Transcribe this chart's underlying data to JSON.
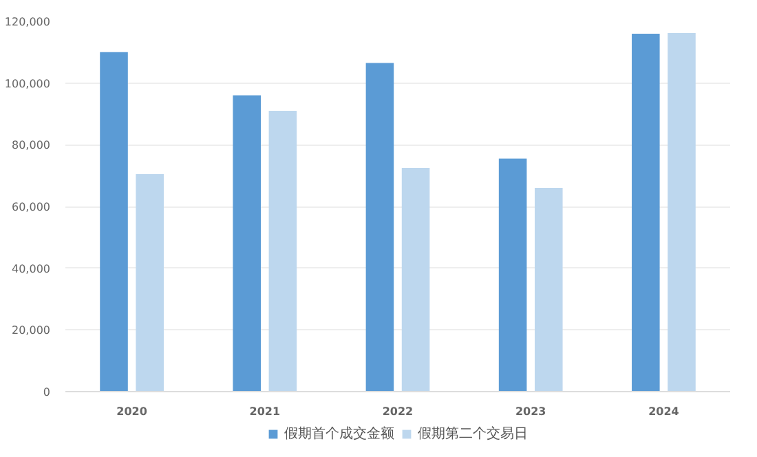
{
  "chart_data": {
    "type": "bar",
    "categories": [
      "2020",
      "2021",
      "2022",
      "2023",
      "2024"
    ],
    "series": [
      {
        "name": "假期首个成交金额",
        "color": "#5b9bd5",
        "values": [
          110000,
          96000,
          106500,
          75500,
          116000
        ]
      },
      {
        "name": "假期第二个交易日",
        "color": "#bdd7ee",
        "values": [
          70500,
          91000,
          72500,
          66000,
          116200
        ]
      }
    ],
    "ylim": [
      0,
      120000
    ],
    "yticks": [
      {
        "value": 0,
        "label": "0"
      },
      {
        "value": 20000,
        "label": "20,000"
      },
      {
        "value": 40000,
        "label": "40,000"
      },
      {
        "value": 60000,
        "label": "60,000"
      },
      {
        "value": 80000,
        "label": "80,000"
      },
      {
        "value": 100000,
        "label": "100,000"
      },
      {
        "value": 120000,
        "label": "120,000"
      }
    ],
    "grid": "y",
    "legend": "bottom"
  }
}
